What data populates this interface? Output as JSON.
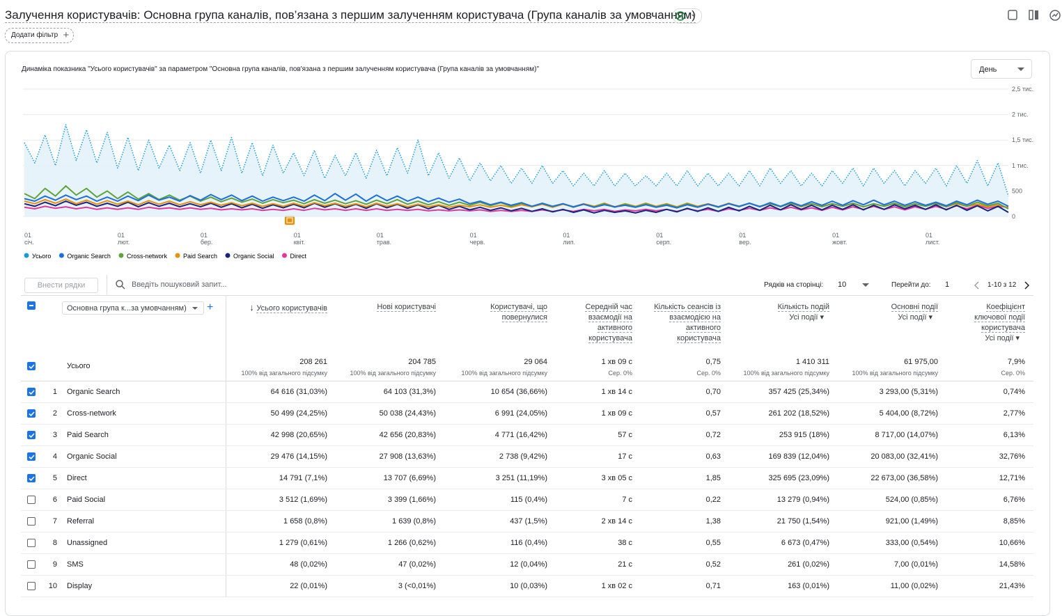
{
  "header": {
    "title": "Залучення користувачів: Основна група каналів, пов’язана з першим залученням користувача (Група каналів за умовчанням)",
    "filter_button": "Додати фільтр"
  },
  "chart_data": {
    "type": "line",
    "title": "Динаміка показника \"Усього користувачів\" за параметром \"Основна група каналів, пов'язана з першим залученням користувача (Група каналів за умовчанням)\"",
    "period_select": "День",
    "categories": [
      "01 січ.",
      null,
      null,
      null,
      null,
      null,
      null,
      null,
      null,
      "01 лют.",
      null,
      null,
      null,
      null,
      null,
      null,
      null,
      "01 бер.",
      null,
      null,
      null,
      null,
      null,
      null,
      null,
      null,
      "01 квіт.",
      null,
      null,
      null,
      null,
      null,
      null,
      null,
      "01 трав.",
      null,
      null,
      null,
      null,
      null,
      null,
      null,
      null,
      "01 черв.",
      null,
      null,
      null,
      null,
      null,
      null,
      null,
      null,
      "01 лип.",
      null,
      null,
      null,
      null,
      null,
      null,
      null,
      null,
      "01 серп.",
      null,
      null,
      null,
      null,
      null,
      null,
      null,
      "01 вер.",
      null,
      null,
      null,
      null,
      null,
      null,
      null,
      null,
      "01 жовт.",
      null,
      null,
      null,
      null,
      null,
      null,
      null,
      null,
      "01 лист.",
      null,
      null,
      null,
      null,
      null,
      null,
      null,
      null
    ],
    "ylim": [
      0,
      2500
    ],
    "yticks": [
      0,
      500,
      {
        "value": 1000,
        "label": "1 тис."
      },
      {
        "value": 1500,
        "label": "1,5 тис."
      },
      {
        "value": 2000,
        "label": "2 тис."
      },
      {
        "value": 2500,
        "label": "2,5 тис."
      }
    ],
    "grid": true,
    "series": [
      {
        "name": "Усього",
        "color": "#1a9bd7",
        "style": "dotted-area",
        "values": [
          1450,
          1050,
          1600,
          1000,
          1800,
          1100,
          1700,
          1050,
          1650,
          950,
          1550,
          900,
          1500,
          950,
          1400,
          900,
          1450,
          850,
          1500,
          900,
          1550,
          850,
          1450,
          800,
          1400,
          850,
          1250,
          800,
          1300,
          750,
          1200,
          800,
          1250,
          750,
          1300,
          800,
          1350,
          850,
          1500,
          800,
          1250,
          750,
          1150,
          700,
          1050,
          700,
          1000,
          650,
          950,
          650,
          1000,
          650,
          900,
          600,
          850,
          600,
          900,
          600,
          850,
          600,
          800,
          600,
          850,
          600,
          900,
          600,
          850,
          600,
          850,
          600,
          900,
          600,
          950,
          650,
          900,
          600,
          850,
          600,
          900,
          650,
          950,
          600,
          950,
          650,
          900,
          600,
          900,
          650,
          950,
          600,
          1000,
          650,
          1100,
          600,
          1050,
          400
        ]
      },
      {
        "name": "Organic Search",
        "color": "#1e6fdc",
        "values": [
          350,
          300,
          400,
          320,
          420,
          330,
          400,
          300,
          380,
          300,
          400,
          310,
          420,
          320,
          380,
          300,
          410,
          320,
          430,
          330,
          420,
          310,
          400,
          300,
          380,
          310,
          380,
          300,
          420,
          310,
          450,
          320,
          440,
          300,
          420,
          310,
          400,
          300,
          380,
          290,
          360,
          280,
          340,
          250,
          300,
          230,
          280,
          220,
          270,
          200,
          260,
          200,
          250,
          190,
          240,
          180,
          230,
          190,
          220,
          180,
          230,
          180,
          220,
          170,
          230,
          180,
          240,
          190,
          250,
          200,
          260,
          190,
          270,
          200,
          280,
          210,
          290,
          220,
          300,
          220,
          310,
          230,
          320,
          230,
          300,
          220,
          290,
          220,
          280,
          210,
          300,
          230,
          320,
          240,
          300,
          200
        ]
      },
      {
        "name": "Cross-network",
        "color": "#5fa33a",
        "values": [
          450,
          350,
          550,
          400,
          600,
          420,
          550,
          380,
          500,
          350,
          480,
          340,
          450,
          330,
          420,
          320,
          400,
          300,
          380,
          290,
          360,
          280,
          340,
          260,
          330,
          270,
          320,
          250,
          330,
          260,
          320,
          250,
          310,
          240,
          320,
          250,
          330,
          240,
          300,
          230,
          290,
          220,
          280,
          220,
          280,
          210,
          270,
          200,
          260,
          200,
          250,
          190,
          250,
          180,
          240,
          190,
          250,
          180,
          240,
          190,
          250,
          190,
          240,
          180,
          250,
          190,
          240,
          180,
          250,
          190,
          260,
          200,
          250,
          190,
          260,
          200,
          250,
          190,
          250,
          200,
          260,
          190,
          250,
          200,
          260,
          190,
          250,
          200,
          260,
          190,
          270,
          200,
          280,
          210,
          260,
          150
        ]
      },
      {
        "name": "Paid Search",
        "color": "#e8900c",
        "values": [
          300,
          250,
          330,
          260,
          340,
          250,
          320,
          240,
          310,
          240,
          300,
          230,
          310,
          240,
          300,
          230,
          290,
          230,
          280,
          220,
          270,
          210,
          260,
          200,
          250,
          200,
          260,
          200,
          270,
          210,
          260,
          200,
          250,
          190,
          260,
          200,
          250,
          190,
          240,
          190,
          230,
          180,
          220,
          190,
          230,
          180,
          220,
          180,
          230,
          190,
          240,
          180,
          240,
          190,
          250,
          200,
          260,
          190,
          250,
          200,
          260,
          200,
          250,
          190,
          260,
          200,
          250,
          190,
          260,
          200,
          260,
          190,
          250,
          200,
          260,
          190,
          250,
          200,
          250,
          200,
          260,
          190,
          250,
          200,
          260,
          190,
          250,
          200,
          260,
          190,
          250,
          200,
          240,
          190,
          230,
          170
        ]
      },
      {
        "name": "Organic Social",
        "color": "#1a237e",
        "values": [
          250,
          200,
          280,
          210,
          300,
          220,
          280,
          200,
          260,
          200,
          280,
          190,
          270,
          200,
          260,
          190,
          250,
          190,
          260,
          180,
          250,
          170,
          240,
          160,
          230,
          170,
          240,
          170,
          260,
          180,
          250,
          170,
          240,
          160,
          250,
          170,
          240,
          160,
          230,
          150,
          220,
          140,
          200,
          130,
          180,
          120,
          170,
          110,
          160,
          100,
          150,
          90,
          140,
          80,
          130,
          70,
          120,
          80,
          110,
          70,
          120,
          80,
          140,
          90,
          160,
          100,
          170,
          100,
          180,
          110,
          200,
          120,
          220,
          130,
          230,
          140,
          220,
          130,
          220,
          140,
          230,
          130,
          220,
          140,
          230,
          150,
          220,
          140,
          230,
          130,
          220,
          120,
          210,
          110,
          200,
          80
        ]
      },
      {
        "name": "Direct",
        "color": "#e0399c",
        "values": [
          180,
          150,
          200,
          160,
          190,
          150,
          180,
          140,
          170,
          140,
          170,
          140,
          180,
          150,
          170,
          140,
          170,
          140,
          160,
          130,
          150,
          130,
          150,
          120,
          140,
          120,
          150,
          120,
          160,
          130,
          150,
          120,
          150,
          120,
          150,
          120,
          140,
          120,
          140,
          110,
          130,
          110,
          130,
          110,
          130,
          100,
          120,
          100,
          120,
          100,
          130,
          100,
          130,
          100,
          140,
          110,
          140,
          100,
          130,
          110,
          140,
          110,
          140,
          100,
          150,
          110,
          140,
          100,
          150,
          120,
          160,
          120,
          170,
          130,
          180,
          130,
          170,
          120,
          180,
          130,
          190,
          140,
          200,
          140,
          190,
          130,
          190,
          140,
          200,
          140,
          210,
          150,
          220,
          160,
          200,
          180
        ]
      }
    ]
  },
  "toolbar": {
    "add_rows": "Внести рядки",
    "search": "Введіть пошуковий запит...",
    "rows_per_page_label": "Рядків на сторінці:",
    "rows_per_page": "10",
    "goto_label": "Перейти до:",
    "goto": "1",
    "range": "1-10 з 12"
  },
  "table": {
    "dimension": "Основна група к...за умовчанням)",
    "total_label": "Усього",
    "columns": [
      {
        "title": "Усього користувачів"
      },
      {
        "title": "Нові користувачі"
      },
      {
        "title": "Користувачі, що повернулися"
      },
      {
        "title": "Середній час взаємодії на активного користувача"
      },
      {
        "title": "Кількість сеансів із взаємодією на активного користувача"
      },
      {
        "title": "Кількість подій",
        "sub": "Усі події"
      },
      {
        "title": "Основні події",
        "sub": "Усі події"
      },
      {
        "title": "Коефіцієнт ключової події користувача",
        "sub": "Усі події"
      }
    ],
    "totals": [
      {
        "value": "208 261",
        "note": "100% від загального підсумку"
      },
      {
        "value": "204 785",
        "note": "100% від загального підсумку"
      },
      {
        "value": "29 064",
        "note": "100% від загального підсумку"
      },
      {
        "value": "1 хв 09 с",
        "note": "Сер. 0%"
      },
      {
        "value": "0,75",
        "note": "Сер. 0%"
      },
      {
        "value": "1 410 311",
        "note": "100% від загального підсумку"
      },
      {
        "value": "61 975,00",
        "note": "100% від загального підсумку"
      },
      {
        "value": "7,9%",
        "note": "Сер. 0%"
      }
    ],
    "rows": [
      {
        "n": "1",
        "name": "Organic Search",
        "checked": true,
        "cells": [
          "64 616 (31,03%)",
          "64 103 (31,3%)",
          "10 654 (36,66%)",
          "1 хв 14 с",
          "0,70",
          "357 425 (25,34%)",
          "3 293,00 (5,31%)",
          "0,74%"
        ]
      },
      {
        "n": "2",
        "name": "Cross-network",
        "checked": true,
        "cells": [
          "50 499 (24,25%)",
          "50 038 (24,43%)",
          "6 991 (24,05%)",
          "1 хв 09 с",
          "0,57",
          "261 202 (18,52%)",
          "5 404,00 (8,72%)",
          "2,77%"
        ]
      },
      {
        "n": "3",
        "name": "Paid Search",
        "checked": true,
        "cells": [
          "42 998 (20,65%)",
          "42 656 (20,83%)",
          "4 771 (16,42%)",
          "57 с",
          "0,72",
          "253 915 (18%)",
          "8 717,00 (14,07%)",
          "6,13%"
        ]
      },
      {
        "n": "4",
        "name": "Organic Social",
        "checked": true,
        "cells": [
          "29 476 (14,15%)",
          "27 908 (13,63%)",
          "2 738 (9,42%)",
          "17 с",
          "0,63",
          "169 839 (12,04%)",
          "20 083,00 (32,41%)",
          "32,76%"
        ]
      },
      {
        "n": "5",
        "name": "Direct",
        "checked": true,
        "cells": [
          "14 791 (7,1%)",
          "13 707 (6,69%)",
          "3 251 (11,19%)",
          "3 хв 05 с",
          "1,85",
          "325 695 (23,09%)",
          "22 673,00 (36,58%)",
          "12,71%"
        ]
      },
      {
        "n": "6",
        "name": "Paid Social",
        "checked": false,
        "cells": [
          "3 512 (1,69%)",
          "3 399 (1,66%)",
          "115 (0,4%)",
          "7 с",
          "0,22",
          "13 279 (0,94%)",
          "524,00 (0,85%)",
          "6,76%"
        ]
      },
      {
        "n": "7",
        "name": "Referral",
        "checked": false,
        "cells": [
          "1 658 (0,8%)",
          "1 639 (0,8%)",
          "437 (1,5%)",
          "2 хв 14 с",
          "1,38",
          "21 750 (1,54%)",
          "921,00 (1,49%)",
          "8,85%"
        ]
      },
      {
        "n": "8",
        "name": "Unassigned",
        "checked": false,
        "cells": [
          "1 279 (0,61%)",
          "1 266 (0,62%)",
          "116 (0,4%)",
          "38 с",
          "0,55",
          "6 673 (0,47%)",
          "333,00 (0,54%)",
          "10,66%"
        ]
      },
      {
        "n": "9",
        "name": "SMS",
        "checked": false,
        "cells": [
          "48 (0,02%)",
          "47 (0,02%)",
          "12 (0,04%)",
          "21 с",
          "0,52",
          "261 (0,02%)",
          "7,00 (0,01%)",
          "14,58%"
        ]
      },
      {
        "n": "10",
        "name": "Display",
        "checked": false,
        "cells": [
          "22 (0,01%)",
          "3 (<0,01%)",
          "10 (0,03%)",
          "1 хв 02 с",
          "0,71",
          "163 (0,01%)",
          "11,00 (0,02%)",
          "21,43%"
        ]
      }
    ]
  }
}
